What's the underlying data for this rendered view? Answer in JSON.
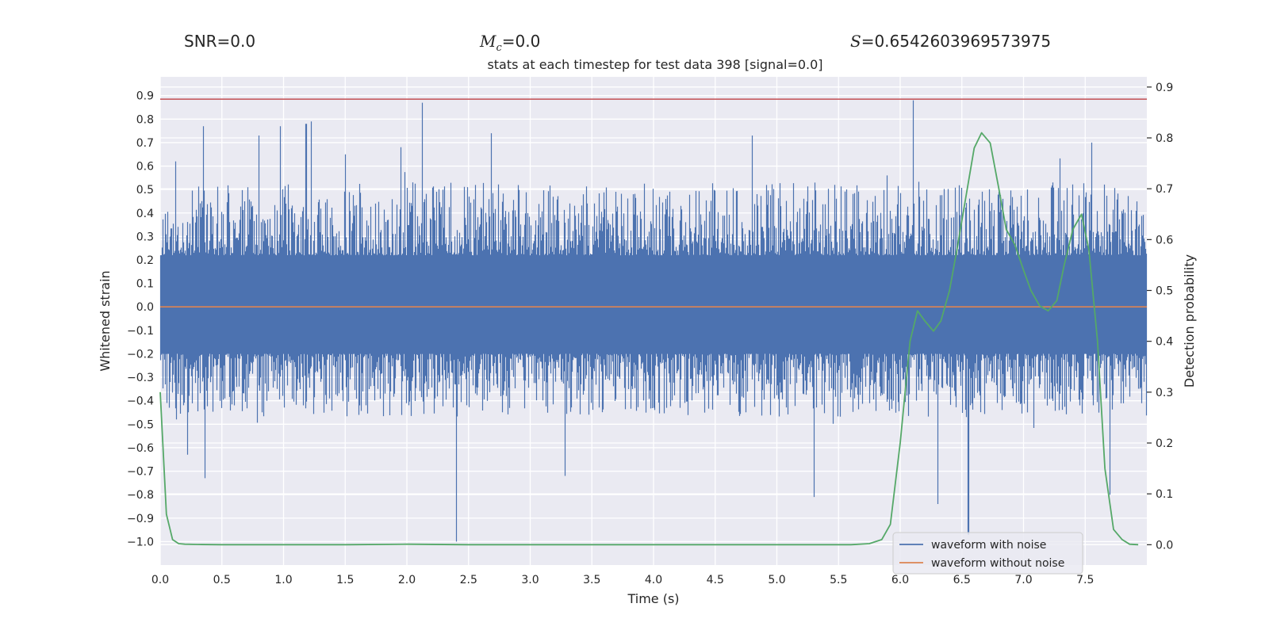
{
  "header": {
    "snr": "SNR=0.0",
    "mc_symbol": "M",
    "mc_sub": "c",
    "mc_value": "=0.0",
    "s_symbol": "S",
    "s_value": "=0.6542603969573975"
  },
  "chart_data": {
    "type": "line",
    "title": "stats at each timestep for test data 398 [signal=0.0]",
    "xlabel": "Time (s)",
    "ylabel": "Whitened strain",
    "ylabel_right": "Detection probability",
    "xlim": [
      0.0,
      8.0
    ],
    "ylim": [
      -1.1,
      0.98
    ],
    "ylim_right": [
      -0.04,
      0.92
    ],
    "x_ticks": [
      "0.0",
      "0.5",
      "1.0",
      "1.5",
      "2.0",
      "2.5",
      "3.0",
      "3.5",
      "4.0",
      "4.5",
      "5.0",
      "5.5",
      "6.0",
      "6.5",
      "7.0",
      "7.5"
    ],
    "y_ticks": [
      "0.9",
      "0.8",
      "0.7",
      "0.6",
      "0.5",
      "0.4",
      "0.3",
      "0.2",
      "0.1",
      "0.0",
      "−0.1",
      "−0.2",
      "−0.3",
      "−0.4",
      "−0.5",
      "−0.6",
      "−0.7",
      "−0.8",
      "−0.9",
      "−1.0"
    ],
    "y_ticks_right": [
      "0.9",
      "0.8",
      "0.7",
      "0.6",
      "0.5",
      "0.4",
      "0.3",
      "0.2",
      "0.1",
      "0.0"
    ],
    "grid": true,
    "legend_position": "lower-right",
    "threshold": 0.885,
    "colors": {
      "noise": "#4c72b0",
      "clean": "#dd8452",
      "prob": "#55a868",
      "threshold": "#c44e52",
      "axes_bg": "#eaeaf2",
      "grid": "#ffffff"
    },
    "series": [
      {
        "name": "waveform with noise",
        "envelope": {
          "typical_upper": 0.45,
          "typical_lower": -0.4,
          "spikes": [
            {
              "x": 0.12,
              "y": 0.62
            },
            {
              "x": 0.22,
              "y": -0.63
            },
            {
              "x": 0.35,
              "y": 0.77
            },
            {
              "x": 0.36,
              "y": -0.73
            },
            {
              "x": 0.8,
              "y": 0.73
            },
            {
              "x": 0.97,
              "y": 0.77
            },
            {
              "x": 1.22,
              "y": 0.79
            },
            {
              "x": 1.18,
              "y": 0.78
            },
            {
              "x": 1.5,
              "y": 0.65
            },
            {
              "x": 1.95,
              "y": 0.68
            },
            {
              "x": 2.12,
              "y": 0.87
            },
            {
              "x": 2.4,
              "y": -1.0
            },
            {
              "x": 2.68,
              "y": 0.74
            },
            {
              "x": 3.28,
              "y": -0.72
            },
            {
              "x": 4.8,
              "y": 0.73
            },
            {
              "x": 5.3,
              "y": -0.81
            },
            {
              "x": 6.1,
              "y": 0.88
            },
            {
              "x": 6.3,
              "y": -0.84
            },
            {
              "x": 6.55,
              "y": -0.97
            },
            {
              "x": 7.7,
              "y": -0.8
            },
            {
              "x": 7.55,
              "y": 0.7
            }
          ]
        }
      },
      {
        "name": "waveform without noise",
        "x": [
          0.0,
          8.0
        ],
        "y": [
          0.0,
          0.0
        ]
      },
      {
        "name": "",
        "axis": "right",
        "x": [
          0.0,
          0.05,
          0.1,
          0.15,
          0.2,
          0.3,
          0.5,
          1.0,
          1.5,
          2.0,
          2.5,
          3.0,
          4.0,
          5.0,
          5.6,
          5.75,
          5.85,
          5.92,
          6.0,
          6.08,
          6.14,
          6.2,
          6.27,
          6.33,
          6.4,
          6.46,
          6.53,
          6.6,
          6.66,
          6.73,
          6.8,
          6.86,
          6.93,
          7.0,
          7.06,
          7.13,
          7.2,
          7.27,
          7.33,
          7.4,
          7.47,
          7.53,
          7.6,
          7.66,
          7.73,
          7.8,
          7.86,
          7.93
        ],
        "y": [
          0.3,
          0.06,
          0.01,
          0.002,
          0.001,
          0.0005,
          0.0,
          0.0,
          0.0,
          0.001,
          0.0,
          0.0,
          0.0,
          0.0,
          0.0,
          0.002,
          0.01,
          0.04,
          0.2,
          0.4,
          0.46,
          0.44,
          0.42,
          0.44,
          0.5,
          0.58,
          0.68,
          0.78,
          0.81,
          0.79,
          0.7,
          0.62,
          0.59,
          0.54,
          0.5,
          0.47,
          0.46,
          0.48,
          0.55,
          0.62,
          0.65,
          0.58,
          0.4,
          0.15,
          0.03,
          0.01,
          0.001,
          0.0
        ]
      }
    ]
  }
}
